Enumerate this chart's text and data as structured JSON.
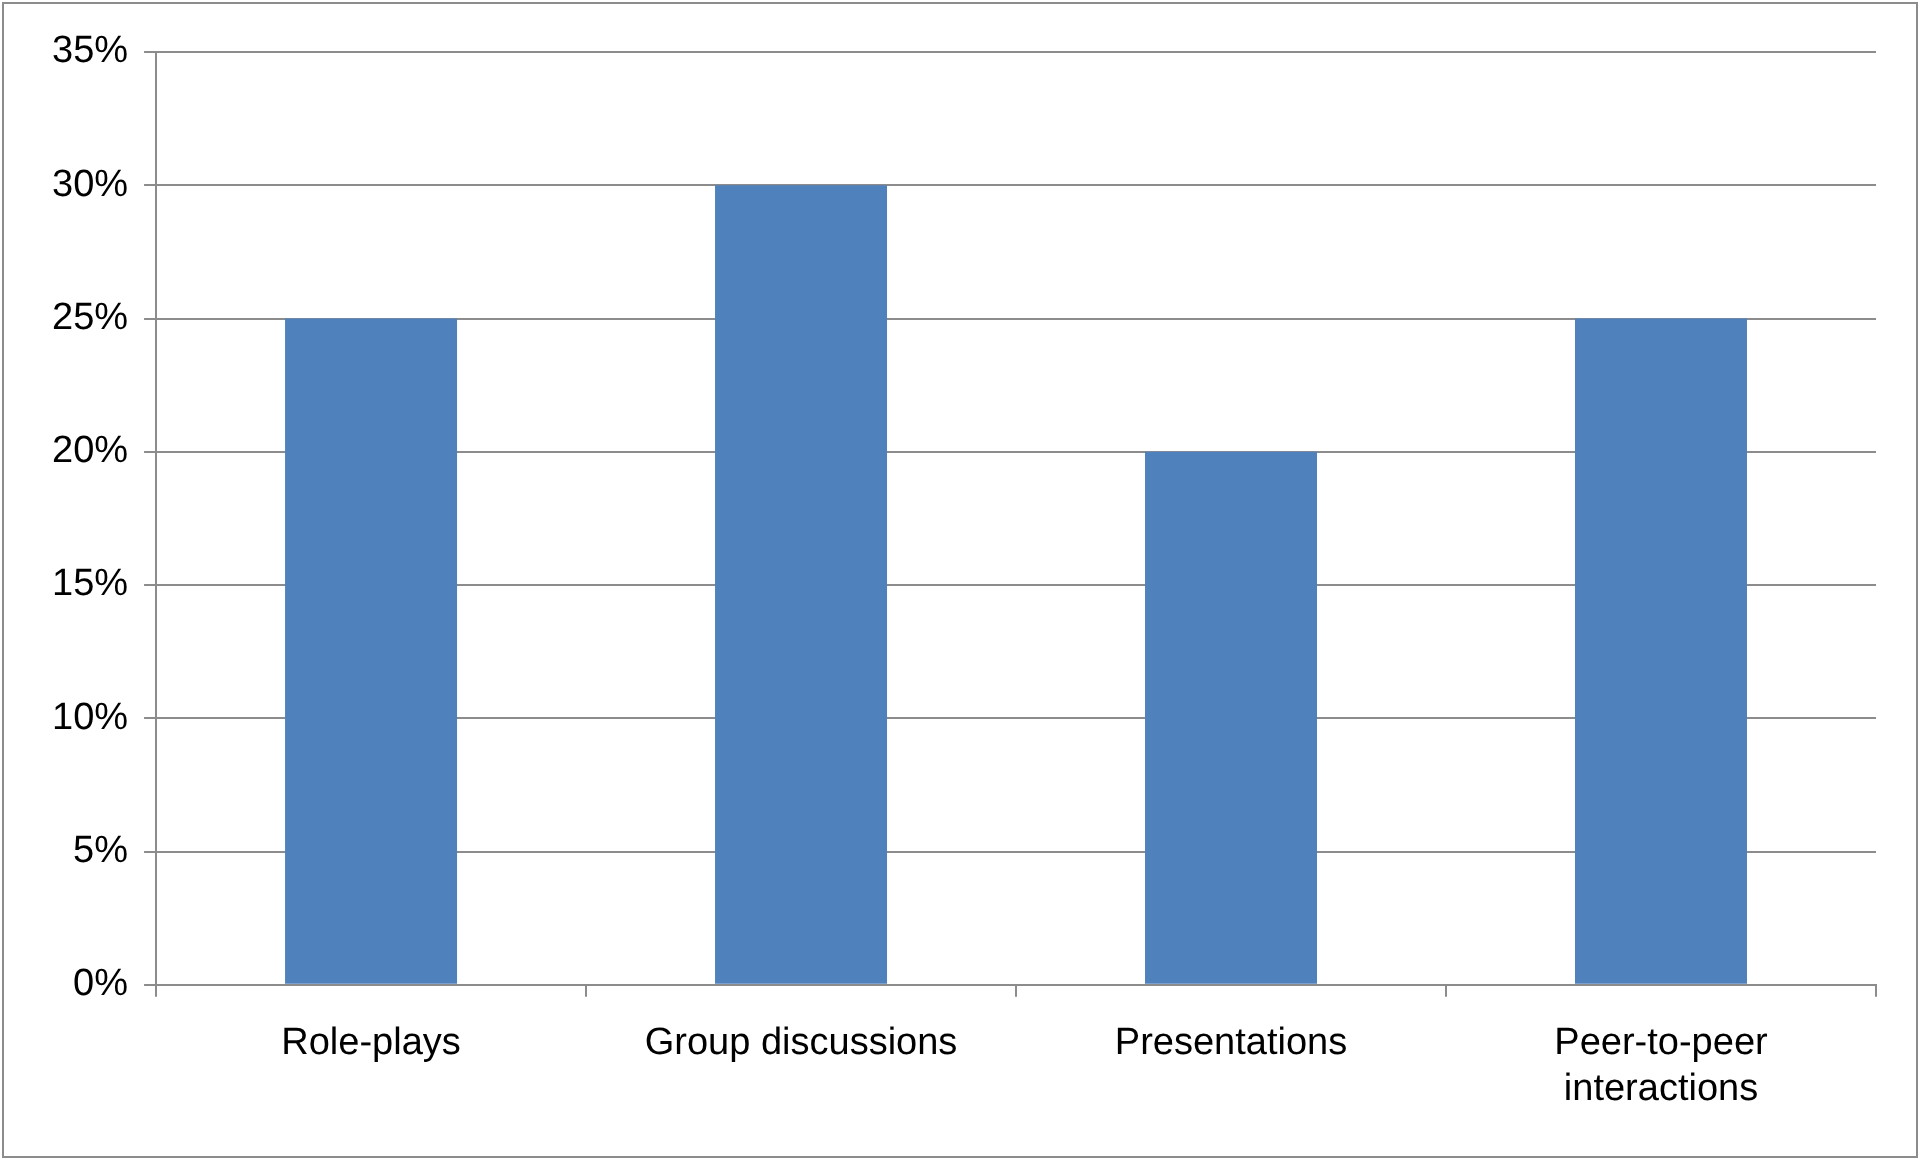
{
  "chart_data": {
    "type": "bar",
    "categories": [
      "Role-plays",
      "Group discussions",
      "Presentations",
      "Peer-to-peer interactions"
    ],
    "values": [
      25,
      30,
      20,
      25
    ],
    "color": "#4f81bd",
    "ylim": [
      0,
      35
    ],
    "yticks": [
      {
        "value": 0,
        "label": "0%"
      },
      {
        "value": 5,
        "label": "5%"
      },
      {
        "value": 10,
        "label": "10%"
      },
      {
        "value": 15,
        "label": "15%"
      },
      {
        "value": 20,
        "label": "20%"
      },
      {
        "value": 25,
        "label": "25%"
      },
      {
        "value": 30,
        "label": "30%"
      },
      {
        "value": 35,
        "label": "35%"
      }
    ],
    "grid": "y",
    "legend": false
  }
}
